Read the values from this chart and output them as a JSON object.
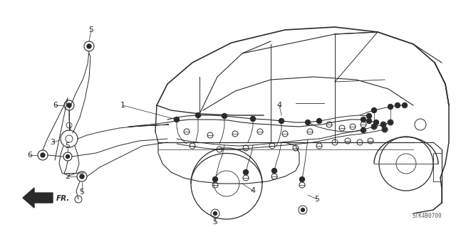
{
  "bg_color": "#ffffff",
  "line_color": "#2a2a2a",
  "diagram_code": "STK4B0700",
  "figsize": [
    6.4,
    3.19
  ],
  "dpi": 100
}
